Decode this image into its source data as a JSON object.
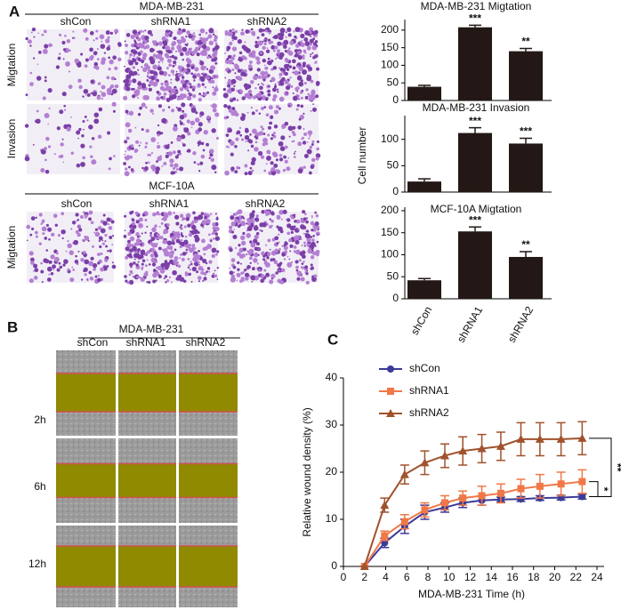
{
  "panel_labels": [
    "A",
    "B",
    "C"
  ],
  "panel_a": {
    "title_top": "MDA-MB-231",
    "columns": [
      "shCon",
      "shRNA1",
      "shRNA2"
    ],
    "rows": [
      "Migtation",
      "Invasion"
    ],
    "title_bottom": "MCF-10A",
    "columns_bottom": [
      "shCon",
      "shRNA1",
      "shRNA2"
    ],
    "row_bottom": "Migtation"
  },
  "panel_b": {
    "title": "MDA-MB-231",
    "columns": [
      "shCon",
      "shRNA1",
      "shRNA2"
    ],
    "rows": [
      "2h",
      "6h",
      "12h"
    ]
  },
  "chart_data": [
    {
      "type": "bar",
      "title": "MDA-MB-231 Migtation",
      "categories": [
        null,
        null,
        null
      ],
      "values": [
        39,
        208,
        140
      ],
      "errors": [
        4,
        6,
        8
      ],
      "annotations": [
        null,
        "***",
        "**"
      ],
      "color": "#231815",
      "ylim": [
        0,
        230
      ],
      "yticks": [
        0,
        50,
        100,
        150,
        200
      ]
    },
    {
      "type": "bar",
      "title": "MDA-MB-231 Invasion",
      "y_label": "Cell number",
      "categories": [
        null,
        null,
        null
      ],
      "values": [
        20,
        112,
        92
      ],
      "errors": [
        5,
        10,
        10
      ],
      "annotations": [
        null,
        "***",
        "***"
      ],
      "color": "#231815",
      "ylim": [
        0,
        145
      ],
      "yticks": [
        0,
        50,
        100
      ]
    },
    {
      "type": "bar",
      "title": "MCF-10A Migtation",
      "categories": [
        "shCon",
        "shRNA1",
        "shRNA2"
      ],
      "values": [
        42,
        153,
        95
      ],
      "errors": [
        4,
        10,
        12
      ],
      "annotations": [
        null,
        "***",
        "**"
      ],
      "color": "#231815",
      "ylim": [
        0,
        208
      ],
      "yticks": [
        0,
        50,
        100,
        150,
        200
      ]
    },
    {
      "type": "line",
      "x_label": "MDA-MB-231 Time (h)",
      "y_label": "Relative wound density  (%)",
      "x": [
        2,
        3.9,
        5.8,
        7.7,
        9.6,
        11.3,
        13.1,
        14.9,
        16.8,
        18.6,
        20.6,
        22.6
      ],
      "xlim": [
        0,
        24
      ],
      "xticks": [
        0,
        2,
        4,
        6,
        8,
        10,
        12,
        14,
        16,
        18,
        20,
        22,
        24
      ],
      "ylim": [
        0,
        40
      ],
      "yticks": [
        0,
        10,
        20,
        30,
        40
      ],
      "legend": "top-left",
      "series": [
        {
          "name": "shCon",
          "color": "#3b3b98",
          "marker": "circle",
          "values": [
            0,
            5,
            8.5,
            11.5,
            12.5,
            13.5,
            14,
            14.2,
            14.3,
            14.5,
            14.6,
            14.8
          ],
          "errors": [
            0,
            1,
            1.5,
            1.5,
            1,
            1,
            1,
            0.5,
            0.5,
            0.5,
            0.5,
            0.5
          ]
        },
        {
          "name": "shRNA1",
          "color": "#f07848",
          "marker": "square",
          "values": [
            0,
            6.5,
            9.5,
            12,
            13.5,
            14.5,
            15,
            15.5,
            16.5,
            17,
            17.5,
            18
          ],
          "errors": [
            0,
            1,
            1.5,
            1.5,
            1.5,
            1.5,
            2,
            2,
            2,
            2.5,
            2.5,
            2.5
          ]
        },
        {
          "name": "shRNA2",
          "color": "#a0522d",
          "marker": "triangle",
          "values": [
            0,
            13,
            19.5,
            22,
            23.5,
            24.5,
            25,
            25.5,
            27,
            27,
            27,
            27.2
          ],
          "errors": [
            0,
            1.5,
            2,
            2.5,
            2.5,
            3,
            3,
            3,
            3.5,
            3.5,
            3.5,
            3.5
          ]
        }
      ],
      "significance": [
        "*",
        "**"
      ]
    }
  ]
}
